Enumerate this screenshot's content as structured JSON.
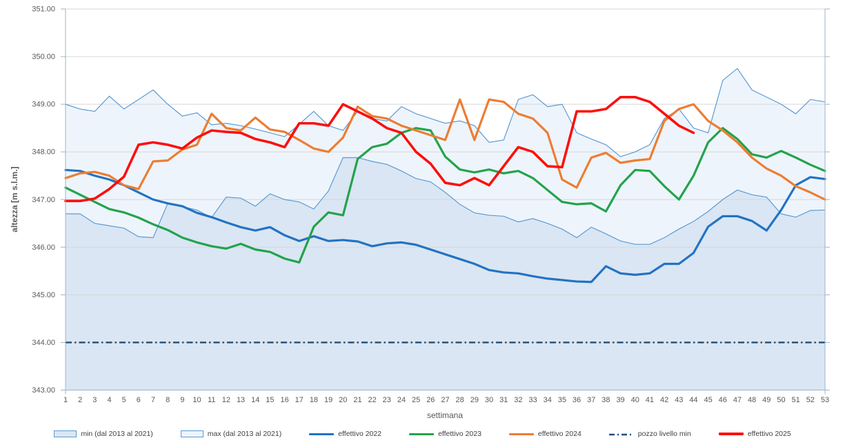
{
  "chart_data": {
    "type": "line",
    "title": "",
    "xlabel": "settimana",
    "ylabel": "altezza [m s.l.m.]",
    "ylim": [
      343,
      351
    ],
    "ytick_step": 1,
    "ytick_format_decimals": 2,
    "grid": true,
    "legend_position": "bottom",
    "x": [
      1,
      2,
      3,
      4,
      5,
      6,
      7,
      8,
      9,
      10,
      11,
      12,
      13,
      14,
      15,
      16,
      17,
      18,
      19,
      20,
      21,
      22,
      23,
      24,
      25,
      26,
      27,
      28,
      29,
      30,
      31,
      32,
      33,
      34,
      35,
      36,
      37,
      38,
      39,
      40,
      41,
      42,
      43,
      44,
      45,
      46,
      47,
      48,
      49,
      50,
      51,
      52,
      53
    ],
    "series": [
      {
        "name": "max (dal 2013 al 2021)",
        "type": "area",
        "z": 0,
        "fill": "#eef4fb",
        "stroke": "#5b9bd5",
        "values": [
          349.0,
          348.9,
          348.85,
          349.17,
          348.9,
          349.1,
          349.3,
          349.0,
          348.75,
          348.82,
          348.57,
          348.6,
          348.55,
          348.48,
          348.4,
          348.32,
          348.58,
          348.85,
          348.55,
          348.45,
          348.85,
          348.7,
          348.65,
          348.95,
          348.8,
          348.7,
          348.6,
          348.65,
          348.55,
          348.2,
          348.25,
          349.1,
          349.2,
          348.95,
          349.0,
          348.4,
          348.27,
          348.15,
          347.9,
          348.0,
          348.15,
          348.7,
          348.9,
          348.5,
          348.4,
          349.5,
          349.75,
          349.3,
          349.15,
          349.0,
          348.8,
          349.1,
          349.05
        ]
      },
      {
        "name": "min (dal 2013 al 2021)",
        "type": "area",
        "z": 1,
        "fill": "#dae6f3",
        "stroke": "#5b9bd5",
        "values": [
          346.7,
          346.7,
          346.5,
          346.45,
          346.4,
          346.22,
          346.2,
          346.92,
          346.85,
          346.78,
          346.62,
          347.05,
          347.03,
          346.86,
          347.12,
          347.0,
          346.95,
          346.8,
          347.18,
          347.88,
          347.88,
          347.8,
          347.74,
          347.6,
          347.44,
          347.37,
          347.15,
          346.9,
          346.72,
          346.67,
          346.65,
          346.53,
          346.6,
          346.5,
          346.38,
          346.2,
          346.42,
          346.28,
          346.13,
          346.06,
          346.06,
          346.2,
          346.38,
          346.54,
          346.75,
          347.0,
          347.2,
          347.1,
          347.05,
          346.7,
          346.63,
          346.77,
          346.78
        ]
      },
      {
        "name": "effettivo 2022",
        "type": "line",
        "z": 2,
        "color": "#2273c3",
        "width": 3.2,
        "values": [
          347.62,
          347.6,
          347.5,
          347.42,
          347.3,
          347.15,
          347.0,
          346.92,
          346.86,
          346.72,
          346.63,
          346.52,
          346.42,
          346.35,
          346.42,
          346.25,
          346.13,
          346.23,
          346.13,
          346.15,
          346.12,
          346.02,
          346.08,
          346.1,
          346.05,
          345.95,
          345.85,
          345.75,
          345.65,
          345.52,
          345.47,
          345.45,
          345.39,
          345.34,
          345.31,
          345.28,
          345.27,
          345.6,
          345.45,
          345.42,
          345.45,
          345.65,
          345.65,
          345.88,
          346.43,
          346.65,
          346.65,
          346.55,
          346.35,
          346.78,
          347.3,
          347.47,
          347.43
        ]
      },
      {
        "name": "effettivo 2023",
        "type": "line",
        "z": 3,
        "color": "#22a34c",
        "width": 3.2,
        "values": [
          347.25,
          347.1,
          346.95,
          346.8,
          346.73,
          346.62,
          346.48,
          346.36,
          346.2,
          346.1,
          346.02,
          345.97,
          346.07,
          345.95,
          345.9,
          345.76,
          345.68,
          346.43,
          346.73,
          346.67,
          347.85,
          348.1,
          348.17,
          348.4,
          348.5,
          348.45,
          347.9,
          347.63,
          347.57,
          347.63,
          347.55,
          347.6,
          347.45,
          347.2,
          346.95,
          346.9,
          346.92,
          346.75,
          347.3,
          347.62,
          347.6,
          347.28,
          347.0,
          347.5,
          348.2,
          348.5,
          348.27,
          347.95,
          347.88,
          348.02,
          347.88,
          347.73,
          347.6
        ]
      },
      {
        "name": "effettivo 2024",
        "type": "line",
        "z": 4,
        "color": "#ed7d31",
        "width": 3.2,
        "values": [
          347.45,
          347.55,
          347.58,
          347.5,
          347.3,
          347.22,
          347.8,
          347.82,
          348.05,
          348.15,
          348.8,
          348.5,
          348.45,
          348.72,
          348.47,
          348.42,
          348.25,
          348.07,
          348.0,
          348.3,
          348.95,
          348.75,
          348.7,
          348.55,
          348.45,
          348.35,
          348.25,
          349.1,
          348.25,
          349.1,
          349.05,
          348.8,
          348.7,
          348.4,
          347.42,
          347.25,
          347.88,
          347.98,
          347.77,
          347.82,
          347.85,
          348.65,
          348.9,
          349.0,
          348.65,
          348.45,
          348.2,
          347.88,
          347.65,
          347.5,
          347.28,
          347.15,
          347.0
        ]
      },
      {
        "name": "pozzo livello min",
        "type": "line",
        "z": 5,
        "color": "#1f4e79",
        "width": 2.4,
        "dash": "9 4 2.5 4",
        "constant": 344.0
      },
      {
        "name": "effettivo 2025",
        "type": "line",
        "z": 6,
        "color": "#fe0d0d",
        "width": 3.6,
        "values": [
          346.97,
          346.97,
          347.02,
          347.22,
          347.48,
          348.15,
          348.2,
          348.15,
          348.07,
          348.3,
          348.45,
          348.42,
          348.4,
          348.27,
          348.2,
          348.1,
          348.6,
          348.6,
          348.55,
          349.0,
          348.85,
          348.7,
          348.5,
          348.4,
          348.0,
          347.75,
          347.35,
          347.3,
          347.45,
          347.3,
          347.7,
          348.1,
          348.0,
          347.7,
          347.68,
          348.85,
          348.85,
          348.9,
          349.15,
          349.15,
          349.05,
          348.8,
          348.55,
          348.4
        ]
      }
    ],
    "colors": {
      "gridline": "#d7d7d7",
      "axis_line": "#9db3c8",
      "tick_label": "#595959",
      "axis_title": "#595959",
      "legend_text": "#404040"
    }
  },
  "legend": {
    "items": [
      {
        "label": "min (dal 2013 al 2021)",
        "swatch": {
          "kind": "area",
          "fill": "#dae6f3",
          "stroke": "#5b9bd5"
        }
      },
      {
        "label": "max (dal 2013 al 2021)",
        "swatch": {
          "kind": "area",
          "fill": "#eef4fb",
          "stroke": "#5b9bd5"
        }
      },
      {
        "label": "effettivo 2022",
        "swatch": {
          "kind": "line",
          "color": "#2273c3",
          "height": 3
        }
      },
      {
        "label": "effettivo 2023",
        "swatch": {
          "kind": "line",
          "color": "#22a34c",
          "height": 3
        }
      },
      {
        "label": "effettivo 2024",
        "swatch": {
          "kind": "line",
          "color": "#ed7d31",
          "height": 3
        }
      },
      {
        "label": "pozzo livello min",
        "swatch": {
          "kind": "dashdot",
          "color": "#1f4e79",
          "height": 2.4
        }
      },
      {
        "label": "effettivo 2025",
        "swatch": {
          "kind": "line",
          "color": "#fe0d0d",
          "height": 3.5
        }
      }
    ]
  }
}
